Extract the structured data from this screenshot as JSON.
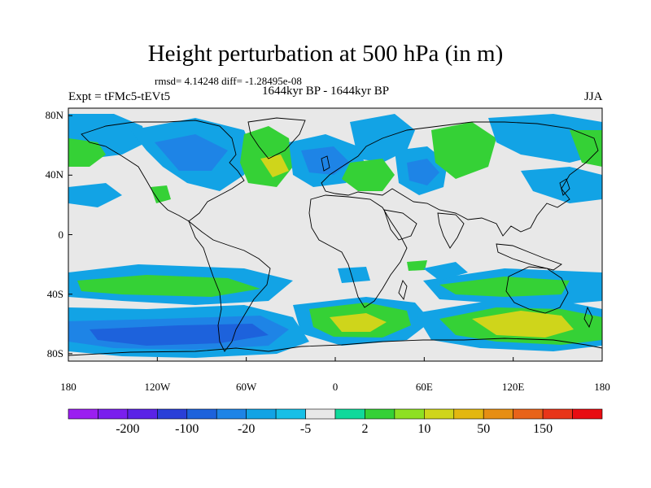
{
  "title": "Height perturbation at 500 hPa (in m)",
  "stats": "rmsd= 4.14248 diff= -1.28495e-08",
  "subtitle": "1644kyr BP - 1644kyr BP",
  "left_label": "Expt = tFMc5-tEVt5",
  "right_label": "JJA",
  "lat_labels": [
    {
      "text": "80N",
      "value": 80
    },
    {
      "text": "40N",
      "value": 40
    },
    {
      "text": "0",
      "value": 0
    },
    {
      "text": "40S",
      "value": -40
    },
    {
      "text": "80S",
      "value": -80
    }
  ],
  "lon_labels": [
    {
      "text": "180",
      "value": -180
    },
    {
      "text": "120W",
      "value": -120
    },
    {
      "text": "60W",
      "value": -60
    },
    {
      "text": "0",
      "value": 0
    },
    {
      "text": "60E",
      "value": 60
    },
    {
      "text": "120E",
      "value": 120
    },
    {
      "text": "180",
      "value": 180
    }
  ],
  "colorbar": {
    "colors": [
      "#9b1ff0",
      "#7a1fee",
      "#5a23e6",
      "#2a3fd8",
      "#1d62dc",
      "#1e84e6",
      "#12a3e5",
      "#17bfe6",
      "#e8e8e8",
      "#10d99b",
      "#35d136",
      "#8ee023",
      "#cfd51b",
      "#e3b710",
      "#e68e13",
      "#e8631a",
      "#e83519",
      "#e80c12"
    ],
    "labels": [
      "-200",
      "-100",
      "-20",
      "-5",
      "2",
      "10",
      "50",
      "150"
    ]
  },
  "map": {
    "background_color": "#e8e8e8",
    "land_outline_color": "#000000"
  }
}
